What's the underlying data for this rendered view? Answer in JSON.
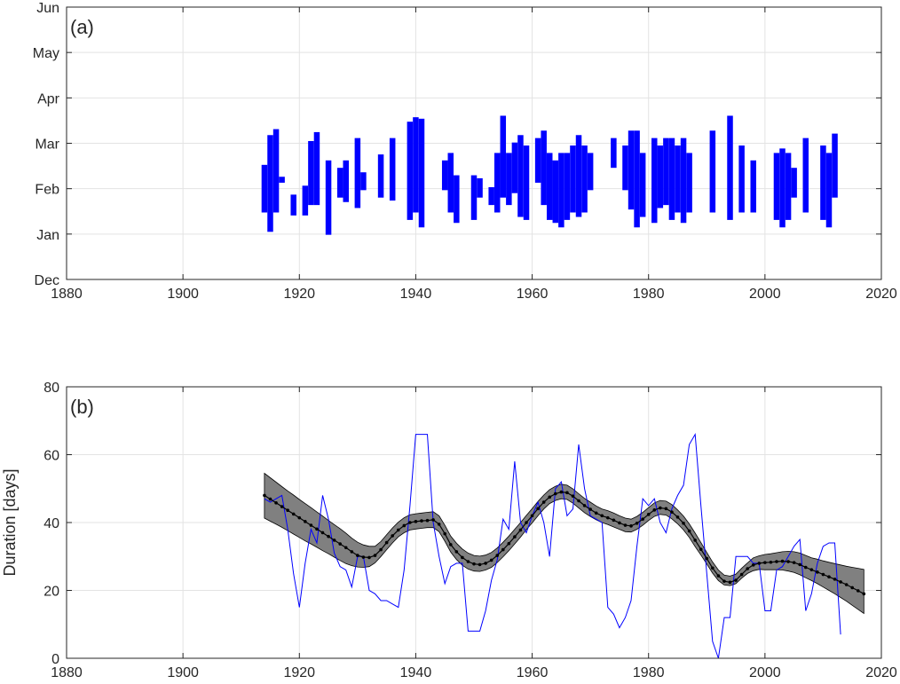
{
  "chart_data": [
    {
      "type": "bar",
      "panel_label": "(a)",
      "xlim": [
        1880,
        2020
      ],
      "xticks": [
        1880,
        1900,
        1920,
        1940,
        1960,
        1980,
        2000,
        2020
      ],
      "yticks": [
        "Dec",
        "Jan",
        "Feb",
        "Mar",
        "Apr",
        "May",
        "Jun"
      ],
      "grid": true,
      "color": "#0000ff",
      "boxes": [
        [
          1914.0,
          45,
          77
        ],
        [
          1915.0,
          32,
          97
        ],
        [
          1916.0,
          45,
          101
        ],
        [
          1917.0,
          65,
          69
        ],
        [
          1919.0,
          43,
          57
        ],
        [
          1921.0,
          43,
          63
        ],
        [
          1922.0,
          50,
          93
        ],
        [
          1923.0,
          50,
          99
        ],
        [
          1925.0,
          30,
          80
        ],
        [
          1927.0,
          55,
          75
        ],
        [
          1928.0,
          52,
          80
        ],
        [
          1930.0,
          48,
          95
        ],
        [
          1931.0,
          60,
          72
        ],
        [
          1934.0,
          55,
          84
        ],
        [
          1936.0,
          53,
          95
        ],
        [
          1939.0,
          40,
          106
        ],
        [
          1940.0,
          45,
          109
        ],
        [
          1941.0,
          35,
          108
        ],
        [
          1945.0,
          60,
          80
        ],
        [
          1946.0,
          45,
          85
        ],
        [
          1947.0,
          38,
          70
        ],
        [
          1950.0,
          40,
          70
        ],
        [
          1951.0,
          55,
          68
        ],
        [
          1953.0,
          50,
          62
        ],
        [
          1954.0,
          45,
          85
        ],
        [
          1955.0,
          55,
          110
        ],
        [
          1956.0,
          50,
          85
        ],
        [
          1957.0,
          58,
          92
        ],
        [
          1958.0,
          42,
          97
        ],
        [
          1959.0,
          40,
          90
        ],
        [
          1961.0,
          65,
          95
        ],
        [
          1962.0,
          50,
          100
        ],
        [
          1963.0,
          40,
          85
        ],
        [
          1964.0,
          38,
          80
        ],
        [
          1965.0,
          35,
          85
        ],
        [
          1966.0,
          40,
          85
        ],
        [
          1967.0,
          45,
          90
        ],
        [
          1968.0,
          42,
          97
        ],
        [
          1969.0,
          45,
          90
        ],
        [
          1970.0,
          60,
          85
        ],
        [
          1974.0,
          75,
          95
        ],
        [
          1976.0,
          60,
          90
        ],
        [
          1977.0,
          47,
          100
        ],
        [
          1978.0,
          35,
          100
        ],
        [
          1979.0,
          42,
          85
        ],
        [
          1981.0,
          38,
          95
        ],
        [
          1982.0,
          48,
          90
        ],
        [
          1983.0,
          50,
          95
        ],
        [
          1984.0,
          40,
          95
        ],
        [
          1985.0,
          45,
          90
        ],
        [
          1986.0,
          38,
          95
        ],
        [
          1987.0,
          45,
          85
        ],
        [
          1991.0,
          45,
          100
        ],
        [
          1994.0,
          40,
          110
        ],
        [
          1996.0,
          45,
          90
        ],
        [
          1998.0,
          45,
          80
        ],
        [
          2002.0,
          40,
          85
        ],
        [
          2003.0,
          35,
          88
        ],
        [
          2004.0,
          40,
          85
        ],
        [
          2005.0,
          55,
          75
        ],
        [
          2007.0,
          45,
          95
        ],
        [
          2010.0,
          40,
          90
        ],
        [
          2011.0,
          35,
          85
        ],
        [
          2012.0,
          55,
          98
        ]
      ]
    },
    {
      "type": "line",
      "panel_label": "(b)",
      "xlim": [
        1880,
        2020
      ],
      "ylim": [
        0,
        80
      ],
      "xticks": [
        1880,
        1900,
        1920,
        1940,
        1960,
        1980,
        2000,
        2020
      ],
      "yticks": [
        0,
        20,
        40,
        60,
        80
      ],
      "ylabel": "Duration [days]",
      "grid": true,
      "series": [
        {
          "color": "#0000ff",
          "x": [
            1914,
            1915,
            1916,
            1917,
            1918,
            1919,
            1920,
            1921,
            1922,
            1923,
            1924,
            1925,
            1926,
            1927,
            1928,
            1929,
            1930,
            1931,
            1932,
            1933,
            1934,
            1935,
            1936,
            1937,
            1938,
            1939,
            1940,
            1941,
            1942,
            1943,
            1944,
            1945,
            1946,
            1947,
            1948,
            1949,
            1950,
            1951,
            1952,
            1953,
            1954,
            1955,
            1956,
            1957,
            1958,
            1959,
            1960,
            1961,
            1962,
            1963,
            1964,
            1965,
            1966,
            1967,
            1968,
            1969,
            1970,
            1971,
            1972,
            1973,
            1974,
            1975,
            1976,
            1977,
            1978,
            1979,
            1980,
            1981,
            1982,
            1983,
            1984,
            1985,
            1986,
            1987,
            1988,
            1989,
            1990,
            1991,
            1992,
            1993,
            1994,
            1995,
            1996,
            1997,
            1998,
            1999,
            2000,
            2001,
            2002,
            2003,
            2004,
            2005,
            2006,
            2007,
            2008,
            2009,
            2010,
            2011,
            2012,
            2013
          ],
          "y": [
            47,
            46,
            47,
            48,
            38,
            25,
            15,
            28,
            38,
            34,
            48,
            41,
            31,
            27,
            26,
            21,
            30,
            30,
            20,
            19,
            17,
            17,
            16,
            15,
            26,
            45,
            66,
            66,
            66,
            40,
            30,
            22,
            27,
            28,
            28,
            8,
            8,
            8,
            14,
            23,
            29,
            41,
            38,
            58,
            40,
            37,
            42,
            46,
            40,
            30,
            50,
            52,
            42,
            44,
            63,
            50,
            42,
            41,
            40,
            15,
            13,
            9,
            12,
            17,
            33,
            47,
            45,
            47,
            40,
            37,
            44,
            48,
            51,
            63,
            66,
            45,
            25,
            5,
            0,
            12,
            12,
            30,
            30,
            30,
            28,
            28,
            14,
            14,
            26,
            27,
            30,
            33,
            35,
            14,
            19,
            28,
            33,
            34,
            34,
            7
          ]
        },
        {
          "color": "#000000",
          "band_color": "#808080",
          "x": [
            1914,
            1915,
            1916,
            1917,
            1918,
            1919,
            1920,
            1921,
            1922,
            1923,
            1924,
            1925,
            1926,
            1927,
            1928,
            1929,
            1930,
            1931,
            1932,
            1933,
            1934,
            1935,
            1936,
            1937,
            1938,
            1939,
            1940,
            1941,
            1942,
            1943,
            1944,
            1945,
            1946,
            1947,
            1948,
            1949,
            1950,
            1951,
            1952,
            1953,
            1954,
            1955,
            1956,
            1957,
            1958,
            1959,
            1960,
            1961,
            1962,
            1963,
            1964,
            1965,
            1966,
            1967,
            1968,
            1969,
            1970,
            1971,
            1972,
            1973,
            1974,
            1975,
            1976,
            1977,
            1978,
            1979,
            1980,
            1981,
            1982,
            1983,
            1984,
            1985,
            1986,
            1987,
            1988,
            1989,
            1990,
            1991,
            1992,
            1993,
            1994,
            1995,
            1996,
            1997,
            1998,
            1999,
            2000,
            2001,
            2002,
            2003,
            2004,
            2005,
            2006,
            2007,
            2008,
            2009,
            2010,
            2011,
            2012,
            2013,
            2014,
            2015,
            2016,
            2017
          ],
          "y": [
            48,
            46.9,
            45.8,
            44.7,
            43.6,
            42.5,
            41.4,
            40.3,
            39.2,
            38.1,
            37,
            35.9,
            34.8,
            33.7,
            32.6,
            31.4,
            30.3,
            29.8,
            29.7,
            30.3,
            32,
            34.1,
            36.1,
            37.8,
            39.1,
            40,
            40.3,
            40.5,
            40.6,
            40.8,
            39.5,
            36.7,
            33.5,
            31.4,
            29.7,
            28.5,
            27.8,
            27.6,
            28,
            28.9,
            30.3,
            32,
            33.8,
            35.8,
            37.8,
            40,
            42,
            44.1,
            46,
            47.5,
            48.5,
            49,
            48.8,
            47.8,
            46.4,
            45,
            43.9,
            42.8,
            42,
            41.4,
            40.7,
            39.9,
            39.2,
            39,
            39.8,
            41,
            42.4,
            43.7,
            44.3,
            44.1,
            43.1,
            41.6,
            39.8,
            37.5,
            34.8,
            32.1,
            29.4,
            26.6,
            24.3,
            22.7,
            22.4,
            23,
            24.7,
            26.4,
            27.5,
            28,
            28.2,
            28.3,
            28.5,
            28.6,
            28.5,
            28.2,
            27.6,
            26.8,
            26.1,
            25.4,
            24.7,
            24,
            23.3,
            22.5,
            21.7,
            20.8,
            19.9,
            19
          ],
          "lower": [
            41.3,
            40.4,
            39.5,
            38.6,
            37.6,
            36.6,
            35.6,
            34.6,
            33.7,
            32.7,
            31.7,
            30.8,
            29.8,
            28.8,
            27.9,
            27.3,
            26.9,
            26.8,
            27,
            28.1,
            30,
            32,
            34,
            35.8,
            37,
            37.8,
            38.1,
            38.3,
            38.5,
            38.5,
            37.3,
            34.5,
            31.3,
            29.1,
            27.4,
            26.3,
            25.7,
            25.6,
            26,
            26.8,
            28.2,
            29.9,
            31.7,
            33.7,
            35.7,
            37.9,
            39.9,
            42,
            44,
            45.6,
            46.5,
            47,
            46.8,
            45.7,
            44.3,
            42.9,
            41.8,
            40.8,
            40,
            39.4,
            38.7,
            38,
            37.3,
            37.2,
            38,
            39.2,
            40.6,
            41.8,
            42.4,
            42.2,
            41.1,
            39.6,
            37.8,
            35.6,
            32.9,
            30.4,
            27.8,
            25.1,
            22.9,
            21.6,
            21.4,
            22,
            23.6,
            25,
            25.8,
            26.2,
            26.1,
            26.1,
            26.1,
            26,
            25.7,
            25.3,
            24.6,
            23.7,
            22.9,
            22,
            21,
            20,
            19,
            17.9,
            16.8,
            15.6,
            14.4,
            13.2
          ],
          "upper": [
            54.5,
            53.2,
            51.9,
            50.6,
            49.3,
            48.1,
            46.8,
            45.6,
            44.4,
            43.1,
            41.9,
            40.6,
            39.4,
            38.2,
            36.9,
            35.4,
            34.2,
            33.4,
            33,
            33,
            34.4,
            36.4,
            38.4,
            40.1,
            41.4,
            42.3,
            42.6,
            42.8,
            43,
            43.2,
            42,
            39.2,
            36,
            33.9,
            32.2,
            31,
            30.3,
            30.1,
            30.4,
            31.2,
            32.5,
            34.2,
            36,
            38,
            40,
            42.1,
            44.1,
            46.2,
            48.1,
            49.7,
            50.7,
            51.3,
            51,
            49.9,
            48.5,
            47.1,
            46,
            44.9,
            44,
            43.5,
            42.8,
            42,
            41.3,
            41,
            41.8,
            43,
            44.4,
            45.8,
            46.5,
            46.3,
            45.3,
            43.7,
            41.9,
            39.6,
            36.9,
            34.1,
            31.2,
            28.4,
            26,
            24.5,
            24.2,
            24.8,
            26.5,
            28.1,
            29.6,
            30.2,
            30.6,
            30.8,
            31.1,
            31.4,
            31.5,
            31.4,
            31,
            30.3,
            29.6,
            29.2,
            28.7,
            28.3,
            27.9,
            27.5,
            27.1,
            26.8,
            26.5,
            26.2
          ]
        }
      ]
    }
  ]
}
